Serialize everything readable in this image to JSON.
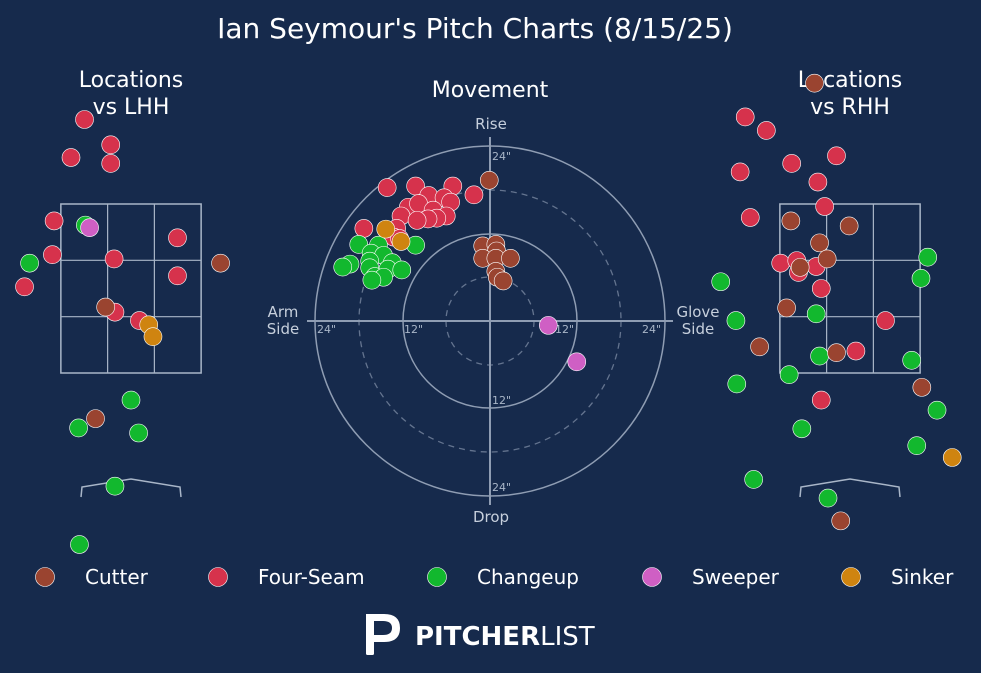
{
  "title": "Ian Seymour's Pitch Charts (8/15/25)",
  "colors": {
    "background": "#162a4c",
    "Cutter": "#9a4430",
    "Four-Seam": "#d6324c",
    "Changeup": "#12b82e",
    "Sweeper": "#cf5fc4",
    "Sinker": "#cf8410"
  },
  "legend": [
    "Cutter",
    "Four-Seam",
    "Changeup",
    "Sweeper",
    "Sinker"
  ],
  "brand": {
    "bold": "PITCHER",
    "light": "LIST"
  },
  "chart_data": [
    {
      "type": "scatter",
      "title_line1": "Locations",
      "title_line2": "vs LHH",
      "xlabel": "",
      "ylabel": "",
      "x_unit": "ft (catcher view, plate_x)",
      "y_unit": "ft (plate_z)",
      "xlim": [
        -2.5,
        2.5
      ],
      "ylim": [
        -0.5,
        5.0
      ],
      "strike_zone": {
        "x": [
          -0.83,
          0.83
        ],
        "z": [
          1.5,
          3.5
        ]
      },
      "points": [
        {
          "type": "Four-Seam",
          "x": -0.55,
          "z": 4.5
        },
        {
          "type": "Four-Seam",
          "x": -0.24,
          "z": 4.2
        },
        {
          "type": "Four-Seam",
          "x": -0.71,
          "z": 4.05
        },
        {
          "type": "Four-Seam",
          "x": -0.24,
          "z": 3.98
        },
        {
          "type": "Four-Seam",
          "x": -0.91,
          "z": 3.3
        },
        {
          "type": "Four-Seam",
          "x": -0.93,
          "z": 2.9
        },
        {
          "type": "Four-Seam",
          "x": -0.2,
          "z": 2.85
        },
        {
          "type": "Four-Seam",
          "x": 0.55,
          "z": 3.1
        },
        {
          "type": "Four-Seam",
          "x": 0.55,
          "z": 2.65
        },
        {
          "type": "Four-Seam",
          "x": -0.19,
          "z": 2.22
        },
        {
          "type": "Four-Seam",
          "x": 0.1,
          "z": 2.12
        },
        {
          "type": "Four-Seam",
          "x": -1.26,
          "z": 2.52
        },
        {
          "type": "Changeup",
          "x": -1.2,
          "z": 2.8
        },
        {
          "type": "Changeup",
          "x": -0.54,
          "z": 3.25
        },
        {
          "type": "Changeup",
          "x": 0.0,
          "z": 1.18
        },
        {
          "type": "Changeup",
          "x": -0.62,
          "z": 0.85
        },
        {
          "type": "Changeup",
          "x": 0.09,
          "z": 0.79
        },
        {
          "type": "Changeup",
          "x": -0.19,
          "z": 0.16
        },
        {
          "type": "Changeup",
          "x": -0.61,
          "z": -0.53
        },
        {
          "type": "Cutter",
          "x": 1.06,
          "z": 2.8
        },
        {
          "type": "Cutter",
          "x": -0.3,
          "z": 2.28
        },
        {
          "type": "Cutter",
          "x": -0.42,
          "z": 0.96
        },
        {
          "type": "Sweeper",
          "x": -0.49,
          "z": 3.22
        },
        {
          "type": "Sinker",
          "x": 0.21,
          "z": 2.07
        },
        {
          "type": "Sinker",
          "x": 0.26,
          "z": 1.93
        }
      ]
    },
    {
      "type": "scatter",
      "title": "Movement",
      "polar": true,
      "x_unit": "inches horizontal break",
      "y_unit": "inches induced vertical break",
      "xlim": [
        -24,
        24
      ],
      "ylim": [
        -24,
        24
      ],
      "rings": [
        6,
        12,
        18,
        24
      ],
      "ring_labels": [
        "12\"",
        "12\"",
        "12\"",
        "24\"",
        "24\"",
        "24\"",
        "24\""
      ],
      "axis_labels": {
        "top": "Rise",
        "bottom": "Drop",
        "left_line1": "Arm",
        "left_line2": "Side",
        "right_line1": "Glove",
        "right_line2": "Side"
      },
      "points": [
        {
          "type": "Four-Seam",
          "x": -14.1,
          "y": 18.3
        },
        {
          "type": "Four-Seam",
          "x": -10.2,
          "y": 18.5
        },
        {
          "type": "Four-Seam",
          "x": -5.1,
          "y": 18.5
        },
        {
          "type": "Four-Seam",
          "x": -2.2,
          "y": 17.3
        },
        {
          "type": "Four-Seam",
          "x": -8.4,
          "y": 17.2
        },
        {
          "type": "Four-Seam",
          "x": -6.3,
          "y": 16.9
        },
        {
          "type": "Four-Seam",
          "x": -5.4,
          "y": 16.3
        },
        {
          "type": "Four-Seam",
          "x": -11.2,
          "y": 15.6
        },
        {
          "type": "Four-Seam",
          "x": -9.8,
          "y": 16.1
        },
        {
          "type": "Four-Seam",
          "x": -7.8,
          "y": 15.2
        },
        {
          "type": "Four-Seam",
          "x": -6.0,
          "y": 14.4
        },
        {
          "type": "Four-Seam",
          "x": -12.2,
          "y": 14.4
        },
        {
          "type": "Four-Seam",
          "x": -7.3,
          "y": 14.1
        },
        {
          "type": "Four-Seam",
          "x": -8.5,
          "y": 14.0
        },
        {
          "type": "Four-Seam",
          "x": -10.0,
          "y": 13.8
        },
        {
          "type": "Four-Seam",
          "x": -12.8,
          "y": 12.7
        },
        {
          "type": "Four-Seam",
          "x": -17.3,
          "y": 12.7
        },
        {
          "type": "Four-Seam",
          "x": -13.2,
          "y": 11.5
        },
        {
          "type": "Four-Seam",
          "x": -12.4,
          "y": 11.3
        },
        {
          "type": "Changeup",
          "x": -18.0,
          "y": 10.5
        },
        {
          "type": "Changeup",
          "x": -15.3,
          "y": 10.4
        },
        {
          "type": "Changeup",
          "x": -10.2,
          "y": 10.4
        },
        {
          "type": "Changeup",
          "x": -16.3,
          "y": 9.3
        },
        {
          "type": "Changeup",
          "x": -14.6,
          "y": 9.0
        },
        {
          "type": "Changeup",
          "x": -16.5,
          "y": 8.2
        },
        {
          "type": "Changeup",
          "x": -13.4,
          "y": 8.0
        },
        {
          "type": "Changeup",
          "x": -19.2,
          "y": 7.8
        },
        {
          "type": "Changeup",
          "x": -16.5,
          "y": 7.3
        },
        {
          "type": "Changeup",
          "x": -14.0,
          "y": 7.1
        },
        {
          "type": "Changeup",
          "x": -12.1,
          "y": 7.0
        },
        {
          "type": "Changeup",
          "x": -20.2,
          "y": 7.4
        },
        {
          "type": "Changeup",
          "x": -15.8,
          "y": 6.1
        },
        {
          "type": "Changeup",
          "x": -14.6,
          "y": 6.0
        },
        {
          "type": "Changeup",
          "x": -16.2,
          "y": 5.6
        },
        {
          "type": "Cutter",
          "x": -0.1,
          "y": 19.3
        },
        {
          "type": "Cutter",
          "x": -1.0,
          "y": 10.3
        },
        {
          "type": "Cutter",
          "x": 0.8,
          "y": 10.5
        },
        {
          "type": "Cutter",
          "x": 0.9,
          "y": 9.6
        },
        {
          "type": "Cutter",
          "x": -1.0,
          "y": 8.6
        },
        {
          "type": "Cutter",
          "x": 0.8,
          "y": 8.6
        },
        {
          "type": "Cutter",
          "x": 2.8,
          "y": 8.6
        },
        {
          "type": "Cutter",
          "x": 0.8,
          "y": 6.8
        },
        {
          "type": "Cutter",
          "x": 1.0,
          "y": 6.0
        },
        {
          "type": "Cutter",
          "x": 1.8,
          "y": 5.5
        },
        {
          "type": "Sweeper",
          "x": 8.0,
          "y": -0.6
        },
        {
          "type": "Sweeper",
          "x": 11.9,
          "y": -5.6
        },
        {
          "type": "Sinker",
          "x": -14.3,
          "y": 12.6
        },
        {
          "type": "Sinker",
          "x": -12.2,
          "y": 10.9
        }
      ]
    },
    {
      "type": "scatter",
      "title_line1": "Locations",
      "title_line2": "vs RHH",
      "xlabel": "",
      "ylabel": "",
      "x_unit": "ft (catcher view, plate_x)",
      "y_unit": "ft (plate_z)",
      "xlim": [
        -2.5,
        2.5
      ],
      "ylim": [
        -0.5,
        5.0
      ],
      "strike_zone": {
        "x": [
          -0.83,
          0.83
        ],
        "z": [
          1.5,
          3.5
        ]
      },
      "points": [
        {
          "type": "Four-Seam",
          "x": -1.24,
          "z": 4.53
        },
        {
          "type": "Four-Seam",
          "x": -0.99,
          "z": 4.37
        },
        {
          "type": "Four-Seam",
          "x": -0.16,
          "z": 4.07
        },
        {
          "type": "Four-Seam",
          "x": -0.69,
          "z": 3.98
        },
        {
          "type": "Four-Seam",
          "x": -1.3,
          "z": 3.88
        },
        {
          "type": "Four-Seam",
          "x": -0.38,
          "z": 3.76
        },
        {
          "type": "Four-Seam",
          "x": -0.3,
          "z": 3.47
        },
        {
          "type": "Four-Seam",
          "x": -1.18,
          "z": 3.34
        },
        {
          "type": "Four-Seam",
          "x": -0.82,
          "z": 2.8
        },
        {
          "type": "Four-Seam",
          "x": -0.63,
          "z": 2.83
        },
        {
          "type": "Four-Seam",
          "x": -0.4,
          "z": 2.76
        },
        {
          "type": "Four-Seam",
          "x": -0.34,
          "z": 2.5
        },
        {
          "type": "Four-Seam",
          "x": -0.61,
          "z": 2.69
        },
        {
          "type": "Four-Seam",
          "x": 0.42,
          "z": 2.12
        },
        {
          "type": "Four-Seam",
          "x": 0.07,
          "z": 1.76
        },
        {
          "type": "Four-Seam",
          "x": -0.34,
          "z": 1.18
        },
        {
          "type": "Changeup",
          "x": 0.84,
          "z": 2.62
        },
        {
          "type": "Changeup",
          "x": 0.92,
          "z": 2.87
        },
        {
          "type": "Changeup",
          "x": -1.53,
          "z": 2.58
        },
        {
          "type": "Changeup",
          "x": -1.35,
          "z": 2.12
        },
        {
          "type": "Changeup",
          "x": -0.4,
          "z": 2.2
        },
        {
          "type": "Changeup",
          "x": -0.36,
          "z": 1.7
        },
        {
          "type": "Changeup",
          "x": -1.34,
          "z": 1.37
        },
        {
          "type": "Changeup",
          "x": -0.72,
          "z": 1.48
        },
        {
          "type": "Changeup",
          "x": 0.73,
          "z": 1.65
        },
        {
          "type": "Changeup",
          "x": 1.03,
          "z": 1.06
        },
        {
          "type": "Changeup",
          "x": -0.57,
          "z": 0.84
        },
        {
          "type": "Changeup",
          "x": 0.79,
          "z": 0.64
        },
        {
          "type": "Changeup",
          "x": -1.14,
          "z": 0.24
        },
        {
          "type": "Changeup",
          "x": -0.26,
          "z": 0.02
        },
        {
          "type": "Cutter",
          "x": -0.42,
          "z": 4.93
        },
        {
          "type": "Cutter",
          "x": -0.7,
          "z": 3.3
        },
        {
          "type": "Cutter",
          "x": -0.36,
          "z": 3.04
        },
        {
          "type": "Cutter",
          "x": -0.01,
          "z": 3.24
        },
        {
          "type": "Cutter",
          "x": -0.59,
          "z": 2.75
        },
        {
          "type": "Cutter",
          "x": -0.27,
          "z": 2.85
        },
        {
          "type": "Cutter",
          "x": -0.75,
          "z": 2.27
        },
        {
          "type": "Cutter",
          "x": -1.07,
          "z": 1.81
        },
        {
          "type": "Cutter",
          "x": -0.16,
          "z": 1.74
        },
        {
          "type": "Cutter",
          "x": 0.85,
          "z": 1.33
        },
        {
          "type": "Cutter",
          "x": -0.11,
          "z": -0.25
        },
        {
          "type": "Sinker",
          "x": 1.21,
          "z": 0.5
        }
      ]
    }
  ]
}
